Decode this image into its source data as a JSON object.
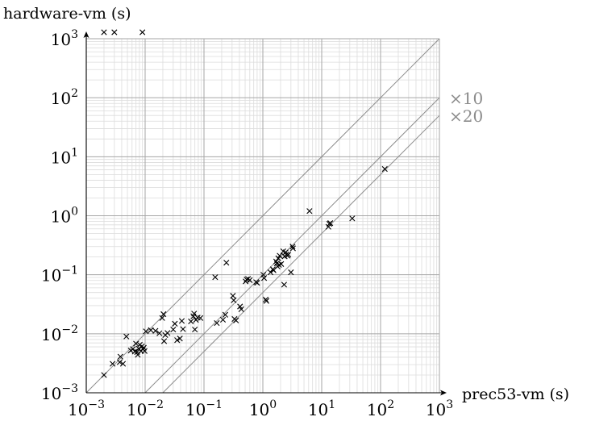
{
  "chart_data": {
    "type": "scatter",
    "title": "",
    "xlabel": "prec53-vm (s)",
    "ylabel": "hardware-vm (s)",
    "x_scale": "log",
    "y_scale": "log",
    "xlim": [
      0.001,
      1000
    ],
    "ylim": [
      0.001,
      1000
    ],
    "grid": true,
    "x_ticks": [
      {
        "base": "10",
        "exp": "−3"
      },
      {
        "base": "10",
        "exp": "−2"
      },
      {
        "base": "10",
        "exp": "−1"
      },
      {
        "base": "10",
        "exp": "0"
      },
      {
        "base": "10",
        "exp": "1"
      },
      {
        "base": "10",
        "exp": "2"
      },
      {
        "base": "10",
        "exp": "3"
      }
    ],
    "y_ticks": [
      {
        "base": "10",
        "exp": "−3"
      },
      {
        "base": "10",
        "exp": "−2"
      },
      {
        "base": "10",
        "exp": "−1"
      },
      {
        "base": "10",
        "exp": "0"
      },
      {
        "base": "10",
        "exp": "1"
      },
      {
        "base": "10",
        "exp": "2"
      },
      {
        "base": "10",
        "exp": "3"
      }
    ],
    "reference_lines": [
      {
        "label": "",
        "ratio": 1
      },
      {
        "label": "×10",
        "ratio": 10
      },
      {
        "label": "×20",
        "ratio": 20
      }
    ],
    "colors": {
      "grid_major": "#a6a6a6",
      "grid_minor": "#dcdcdc",
      "reference": "#8c8c8c",
      "ratio_label": "#8c8c8c",
      "marker": "#000000"
    },
    "points": [
      [
        0.002,
        1000
      ],
      [
        0.003,
        1000
      ],
      [
        0.009,
        1000
      ],
      [
        0.002,
        0.002
      ],
      [
        0.0028,
        0.0031
      ],
      [
        0.0037,
        0.0033
      ],
      [
        0.0038,
        0.0041
      ],
      [
        0.0042,
        0.0031
      ],
      [
        0.0048,
        0.009
      ],
      [
        0.0057,
        0.0052
      ],
      [
        0.0062,
        0.0055
      ],
      [
        0.0067,
        0.005
      ],
      [
        0.007,
        0.0068
      ],
      [
        0.0073,
        0.0049
      ],
      [
        0.0075,
        0.0044
      ],
      [
        0.0078,
        0.0056
      ],
      [
        0.0081,
        0.0065
      ],
      [
        0.0085,
        0.0051
      ],
      [
        0.0088,
        0.0061
      ],
      [
        0.0092,
        0.0055
      ],
      [
        0.0095,
        0.0058
      ],
      [
        0.0098,
        0.0051
      ],
      [
        0.0103,
        0.011
      ],
      [
        0.0125,
        0.0115
      ],
      [
        0.015,
        0.0112
      ],
      [
        0.0175,
        0.0102
      ],
      [
        0.0195,
        0.0185
      ],
      [
        0.0205,
        0.0215
      ],
      [
        0.022,
        0.0095
      ],
      [
        0.021,
        0.0075
      ],
      [
        0.024,
        0.0103
      ],
      [
        0.03,
        0.0118
      ],
      [
        0.032,
        0.0148
      ],
      [
        0.035,
        0.0078
      ],
      [
        0.039,
        0.0083
      ],
      [
        0.042,
        0.0165
      ],
      [
        0.044,
        0.012
      ],
      [
        0.06,
        0.0162
      ],
      [
        0.066,
        0.0198
      ],
      [
        0.068,
        0.022
      ],
      [
        0.07,
        0.0118
      ],
      [
        0.073,
        0.0172
      ],
      [
        0.078,
        0.0188
      ],
      [
        0.087,
        0.0185
      ],
      [
        0.155,
        0.091
      ],
      [
        0.165,
        0.0152
      ],
      [
        0.21,
        0.0173
      ],
      [
        0.23,
        0.021
      ],
      [
        0.24,
        0.16
      ],
      [
        0.31,
        0.044
      ],
      [
        0.32,
        0.037
      ],
      [
        0.33,
        0.0178
      ],
      [
        0.35,
        0.0168
      ],
      [
        0.41,
        0.029
      ],
      [
        0.43,
        0.026
      ],
      [
        0.51,
        0.077
      ],
      [
        0.53,
        0.083
      ],
      [
        0.56,
        0.085
      ],
      [
        0.6,
        0.081
      ],
      [
        0.77,
        0.075
      ],
      [
        0.8,
        0.073
      ],
      [
        1.02,
        0.1
      ],
      [
        1.05,
        0.088
      ],
      [
        1.12,
        0.038
      ],
      [
        1.15,
        0.036
      ],
      [
        1.35,
        0.11
      ],
      [
        1.48,
        0.124
      ],
      [
        1.52,
        0.119
      ],
      [
        1.68,
        0.168
      ],
      [
        1.73,
        0.155
      ],
      [
        1.78,
        0.138
      ],
      [
        1.83,
        0.19
      ],
      [
        1.88,
        0.147
      ],
      [
        1.93,
        0.21
      ],
      [
        2.05,
        0.152
      ],
      [
        2.22,
        0.25
      ],
      [
        2.3,
        0.068
      ],
      [
        2.35,
        0.205
      ],
      [
        2.45,
        0.24
      ],
      [
        2.5,
        0.22
      ],
      [
        2.62,
        0.21
      ],
      [
        2.7,
        0.22
      ],
      [
        3.0,
        0.11
      ],
      [
        3.2,
        0.3
      ],
      [
        3.25,
        0.28
      ],
      [
        6.2,
        1.2
      ],
      [
        13,
        0.65
      ],
      [
        13.5,
        0.73
      ],
      [
        14,
        0.75
      ],
      [
        33,
        0.9
      ],
      [
        118,
        6.2
      ]
    ]
  }
}
